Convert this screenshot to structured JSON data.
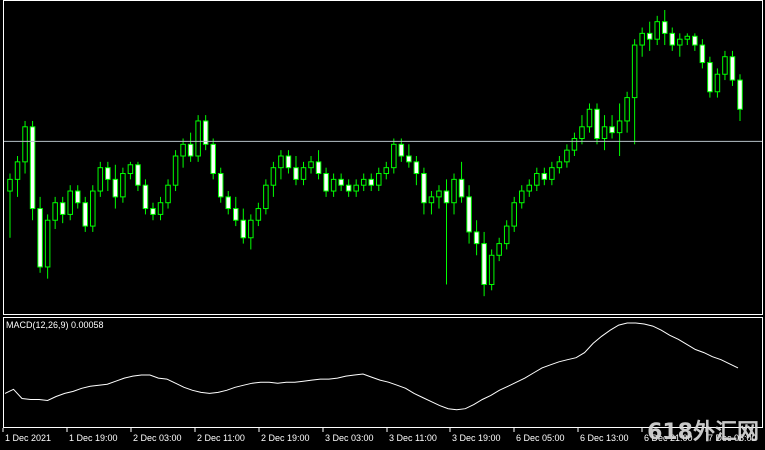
{
  "chart_data": [
    {
      "type": "candlestick",
      "panel": "price",
      "colors": {
        "up_fill": "#000000",
        "down_fill": "#ffffff",
        "wick": "#00ff00",
        "border": "#ffffff",
        "background": "#000000"
      },
      "ylim": [
        0,
        100
      ],
      "horizontal_line": 55,
      "candles": [
        {
          "o": 38,
          "h": 44,
          "l": 22,
          "c": 42
        },
        {
          "o": 42,
          "h": 50,
          "l": 36,
          "c": 48
        },
        {
          "o": 48,
          "h": 62,
          "l": 44,
          "c": 60
        },
        {
          "o": 60,
          "h": 62,
          "l": 28,
          "c": 32
        },
        {
          "o": 32,
          "h": 36,
          "l": 10,
          "c": 12
        },
        {
          "o": 12,
          "h": 30,
          "l": 8,
          "c": 28
        },
        {
          "o": 28,
          "h": 36,
          "l": 25,
          "c": 34
        },
        {
          "o": 34,
          "h": 36,
          "l": 27,
          "c": 30
        },
        {
          "o": 30,
          "h": 40,
          "l": 28,
          "c": 38
        },
        {
          "o": 38,
          "h": 40,
          "l": 32,
          "c": 34
        },
        {
          "o": 34,
          "h": 36,
          "l": 24,
          "c": 26
        },
        {
          "o": 26,
          "h": 40,
          "l": 24,
          "c": 38
        },
        {
          "o": 38,
          "h": 48,
          "l": 36,
          "c": 46
        },
        {
          "o": 46,
          "h": 48,
          "l": 38,
          "c": 42
        },
        {
          "o": 42,
          "h": 47,
          "l": 32,
          "c": 36
        },
        {
          "o": 36,
          "h": 46,
          "l": 34,
          "c": 44
        },
        {
          "o": 44,
          "h": 48,
          "l": 42,
          "c": 47
        },
        {
          "o": 47,
          "h": 48,
          "l": 38,
          "c": 40
        },
        {
          "o": 40,
          "h": 42,
          "l": 30,
          "c": 32
        },
        {
          "o": 32,
          "h": 34,
          "l": 28,
          "c": 30
        },
        {
          "o": 30,
          "h": 36,
          "l": 28,
          "c": 34
        },
        {
          "o": 34,
          "h": 42,
          "l": 32,
          "c": 40
        },
        {
          "o": 40,
          "h": 52,
          "l": 38,
          "c": 50
        },
        {
          "o": 50,
          "h": 56,
          "l": 46,
          "c": 54
        },
        {
          "o": 54,
          "h": 58,
          "l": 48,
          "c": 50
        },
        {
          "o": 50,
          "h": 64,
          "l": 48,
          "c": 62
        },
        {
          "o": 62,
          "h": 64,
          "l": 52,
          "c": 54
        },
        {
          "o": 54,
          "h": 56,
          "l": 42,
          "c": 44
        },
        {
          "o": 44,
          "h": 46,
          "l": 34,
          "c": 36
        },
        {
          "o": 36,
          "h": 38,
          "l": 30,
          "c": 32
        },
        {
          "o": 32,
          "h": 36,
          "l": 26,
          "c": 28
        },
        {
          "o": 28,
          "h": 32,
          "l": 20,
          "c": 22
        },
        {
          "o": 22,
          "h": 30,
          "l": 18,
          "c": 28
        },
        {
          "o": 28,
          "h": 34,
          "l": 26,
          "c": 32
        },
        {
          "o": 32,
          "h": 42,
          "l": 30,
          "c": 40
        },
        {
          "o": 40,
          "h": 48,
          "l": 36,
          "c": 46
        },
        {
          "o": 46,
          "h": 52,
          "l": 42,
          "c": 50
        },
        {
          "o": 50,
          "h": 52,
          "l": 44,
          "c": 46
        },
        {
          "o": 46,
          "h": 50,
          "l": 40,
          "c": 42
        },
        {
          "o": 42,
          "h": 48,
          "l": 40,
          "c": 46
        },
        {
          "o": 46,
          "h": 50,
          "l": 44,
          "c": 48
        },
        {
          "o": 48,
          "h": 52,
          "l": 42,
          "c": 44
        },
        {
          "o": 44,
          "h": 46,
          "l": 36,
          "c": 38
        },
        {
          "o": 38,
          "h": 44,
          "l": 36,
          "c": 42
        },
        {
          "o": 42,
          "h": 44,
          "l": 38,
          "c": 40
        },
        {
          "o": 40,
          "h": 42,
          "l": 36,
          "c": 38
        },
        {
          "o": 38,
          "h": 42,
          "l": 36,
          "c": 40
        },
        {
          "o": 40,
          "h": 44,
          "l": 38,
          "c": 42
        },
        {
          "o": 42,
          "h": 44,
          "l": 38,
          "c": 40
        },
        {
          "o": 40,
          "h": 46,
          "l": 38,
          "c": 44
        },
        {
          "o": 44,
          "h": 48,
          "l": 42,
          "c": 46
        },
        {
          "o": 46,
          "h": 56,
          "l": 44,
          "c": 54
        },
        {
          "o": 54,
          "h": 56,
          "l": 48,
          "c": 50
        },
        {
          "o": 50,
          "h": 54,
          "l": 46,
          "c": 48
        },
        {
          "o": 48,
          "h": 50,
          "l": 40,
          "c": 44
        },
        {
          "o": 44,
          "h": 46,
          "l": 30,
          "c": 34
        },
        {
          "o": 34,
          "h": 38,
          "l": 30,
          "c": 36
        },
        {
          "o": 36,
          "h": 40,
          "l": 32,
          "c": 38
        },
        {
          "o": 38,
          "h": 42,
          "l": 6,
          "c": 34
        },
        {
          "o": 34,
          "h": 44,
          "l": 30,
          "c": 42
        },
        {
          "o": 42,
          "h": 48,
          "l": 34,
          "c": 36
        },
        {
          "o": 36,
          "h": 40,
          "l": 20,
          "c": 24
        },
        {
          "o": 24,
          "h": 28,
          "l": 16,
          "c": 20
        },
        {
          "o": 20,
          "h": 24,
          "l": 2,
          "c": 6
        },
        {
          "o": 6,
          "h": 18,
          "l": 4,
          "c": 16
        },
        {
          "o": 16,
          "h": 22,
          "l": 14,
          "c": 20
        },
        {
          "o": 20,
          "h": 28,
          "l": 18,
          "c": 26
        },
        {
          "o": 26,
          "h": 36,
          "l": 24,
          "c": 34
        },
        {
          "o": 34,
          "h": 40,
          "l": 32,
          "c": 38
        },
        {
          "o": 38,
          "h": 42,
          "l": 36,
          "c": 40
        },
        {
          "o": 40,
          "h": 46,
          "l": 38,
          "c": 44
        },
        {
          "o": 44,
          "h": 46,
          "l": 40,
          "c": 42
        },
        {
          "o": 42,
          "h": 48,
          "l": 40,
          "c": 46
        },
        {
          "o": 46,
          "h": 50,
          "l": 44,
          "c": 48
        },
        {
          "o": 48,
          "h": 54,
          "l": 46,
          "c": 52
        },
        {
          "o": 52,
          "h": 58,
          "l": 50,
          "c": 56
        },
        {
          "o": 56,
          "h": 64,
          "l": 54,
          "c": 60
        },
        {
          "o": 60,
          "h": 68,
          "l": 58,
          "c": 66
        },
        {
          "o": 66,
          "h": 68,
          "l": 54,
          "c": 56
        },
        {
          "o": 56,
          "h": 64,
          "l": 52,
          "c": 60
        },
        {
          "o": 60,
          "h": 64,
          "l": 56,
          "c": 58
        },
        {
          "o": 58,
          "h": 68,
          "l": 50,
          "c": 62
        },
        {
          "o": 62,
          "h": 72,
          "l": 58,
          "c": 70
        },
        {
          "o": 70,
          "h": 90,
          "l": 54,
          "c": 88
        },
        {
          "o": 88,
          "h": 94,
          "l": 84,
          "c": 92
        },
        {
          "o": 92,
          "h": 96,
          "l": 86,
          "c": 90
        },
        {
          "o": 90,
          "h": 98,
          "l": 88,
          "c": 96
        },
        {
          "o": 96,
          "h": 100,
          "l": 88,
          "c": 92
        },
        {
          "o": 92,
          "h": 94,
          "l": 86,
          "c": 88
        },
        {
          "o": 88,
          "h": 92,
          "l": 84,
          "c": 90
        },
        {
          "o": 90,
          "h": 92,
          "l": 88,
          "c": 91
        },
        {
          "o": 91,
          "h": 92,
          "l": 86,
          "c": 88
        },
        {
          "o": 88,
          "h": 90,
          "l": 80,
          "c": 82
        },
        {
          "o": 82,
          "h": 84,
          "l": 70,
          "c": 72
        },
        {
          "o": 72,
          "h": 80,
          "l": 70,
          "c": 78
        },
        {
          "o": 78,
          "h": 86,
          "l": 76,
          "c": 84
        },
        {
          "o": 84,
          "h": 86,
          "l": 74,
          "c": 76
        },
        {
          "o": 76,
          "h": 78,
          "l": 62,
          "c": 66
        }
      ]
    },
    {
      "type": "line",
      "panel": "indicator",
      "title": "MACD(12,26,9) 0.00058",
      "ylim": [
        0,
        100
      ],
      "y": [
        30,
        34,
        25,
        24,
        24,
        23,
        27,
        30,
        32,
        35,
        37,
        38,
        39,
        42,
        45,
        47,
        48,
        48,
        45,
        44,
        40,
        36,
        33,
        31,
        30,
        31,
        33,
        36,
        38,
        40,
        41,
        41,
        40,
        41,
        41,
        42,
        43,
        44,
        44,
        45,
        47,
        48,
        49,
        46,
        43,
        41,
        38,
        35,
        30,
        26,
        22,
        18,
        15,
        14,
        15,
        19,
        24,
        28,
        33,
        37,
        41,
        45,
        50,
        55,
        58,
        61,
        63,
        65,
        70,
        79,
        86,
        92,
        97,
        99,
        99,
        98,
        96,
        92,
        87,
        83,
        78,
        73,
        70,
        66,
        63,
        59,
        55
      ],
      "colors": {
        "line": "#ffffff"
      }
    }
  ],
  "x_ticks": [
    "1 Dec 2021",
    "1 Dec 19:00",
    "2 Dec 03:00",
    "2 Dec 11:00",
    "2 Dec 19:00",
    "3 Dec 03:00",
    "3 Dec 11:00",
    "3 Dec 19:00",
    "6 Dec 05:00",
    "6 Dec 13:00",
    "6 Dec 21:00",
    "7 Dec 05:00"
  ],
  "indicator_label": "MACD(12,26,9) 0.00058",
  "watermark": "618外汇网"
}
